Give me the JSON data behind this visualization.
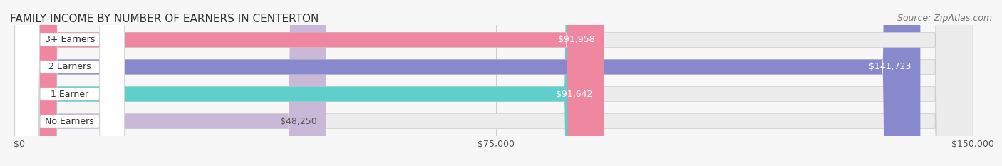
{
  "title": "FAMILY INCOME BY NUMBER OF EARNERS IN CENTERTON",
  "source": "Source: ZipAtlas.com",
  "categories": [
    "No Earners",
    "1 Earner",
    "2 Earners",
    "3+ Earners"
  ],
  "values": [
    48250,
    91642,
    141723,
    91958
  ],
  "max_value": 150000,
  "bar_colors": [
    "#c9b8d8",
    "#5ecfca",
    "#8888cc",
    "#f087a0"
  ],
  "bar_bg_color": "#f0f0f0",
  "label_colors": [
    "#555555",
    "#ffffff",
    "#ffffff",
    "#ffffff"
  ],
  "value_labels": [
    "$48,250",
    "$91,642",
    "$141,723",
    "$91,958"
  ],
  "x_ticks": [
    0,
    75000,
    150000
  ],
  "x_tick_labels": [
    "$0",
    "$75,000",
    "$150,000"
  ],
  "background_color": "#f7f7f7",
  "title_fontsize": 11,
  "source_fontsize": 9,
  "label_fontsize": 9,
  "value_fontsize": 9
}
